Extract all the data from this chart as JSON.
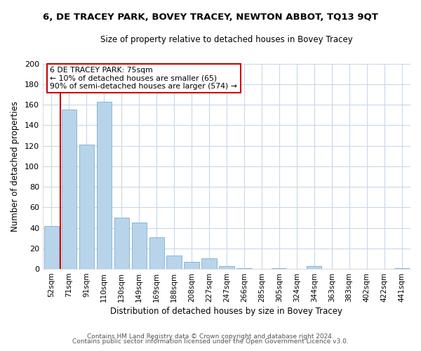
{
  "title": "6, DE TRACEY PARK, BOVEY TRACEY, NEWTON ABBOT, TQ13 9QT",
  "subtitle": "Size of property relative to detached houses in Bovey Tracey",
  "xlabel": "Distribution of detached houses by size in Bovey Tracey",
  "ylabel": "Number of detached properties",
  "categories": [
    "52sqm",
    "71sqm",
    "91sqm",
    "110sqm",
    "130sqm",
    "149sqm",
    "169sqm",
    "188sqm",
    "208sqm",
    "227sqm",
    "247sqm",
    "266sqm",
    "285sqm",
    "305sqm",
    "324sqm",
    "344sqm",
    "363sqm",
    "383sqm",
    "402sqm",
    "422sqm",
    "441sqm"
  ],
  "values": [
    42,
    155,
    121,
    163,
    50,
    45,
    31,
    13,
    7,
    10,
    3,
    1,
    0,
    1,
    0,
    3,
    0,
    0,
    0,
    0,
    1
  ],
  "bar_color": "#b8d4ea",
  "bar_edge_color": "#7ab0d4",
  "vline_color": "#cc0000",
  "vline_x_index": 0,
  "ylim": [
    0,
    200
  ],
  "yticks": [
    0,
    20,
    40,
    60,
    80,
    100,
    120,
    140,
    160,
    180,
    200
  ],
  "annotation_line1": "6 DE TRACEY PARK: 75sqm",
  "annotation_line2": "← 10% of detached houses are smaller (65)",
  "annotation_line3": "90% of semi-detached houses are larger (574) →",
  "footer_line1": "Contains HM Land Registry data © Crown copyright and database right 2024.",
  "footer_line2": "Contains public sector information licensed under the Open Government Licence v3.0.",
  "background_color": "#ffffff",
  "grid_color": "#c8d8e8"
}
